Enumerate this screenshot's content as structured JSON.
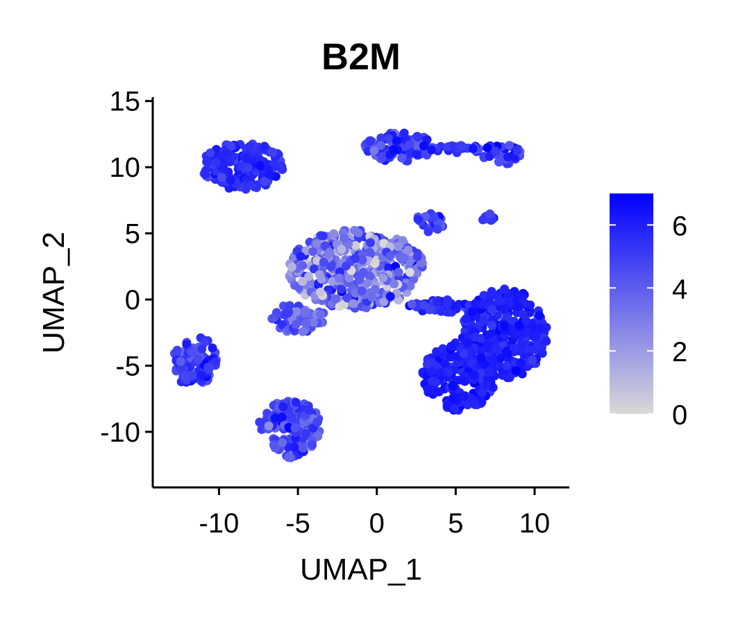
{
  "chart_data": {
    "type": "scatter",
    "title": "B2M",
    "xlabel": "UMAP_1",
    "ylabel": "UMAP_2",
    "xlim": [
      -14.2,
      12.2
    ],
    "ylim": [
      -14.2,
      15.3
    ],
    "xticks": [
      -10,
      -5,
      0,
      5,
      10
    ],
    "xtick_labels": [
      "-10",
      "-5",
      "0",
      "5",
      "10"
    ],
    "yticks": [
      -10,
      -5,
      0,
      5,
      10,
      15
    ],
    "ytick_labels": [
      "-10",
      "-5",
      "0",
      "5",
      "10",
      "15"
    ],
    "grid": false,
    "legend": "right",
    "colorbar": {
      "min": 0,
      "max": 7,
      "ticks": [
        0,
        2,
        4,
        6
      ],
      "tick_labels": [
        "0",
        "2",
        "4",
        "6"
      ],
      "low_color": "#d9d9d9",
      "high_color": "#0000ff"
    },
    "point_color_mid": "#7b5cf0",
    "clusters": [
      {
        "name": "top-left",
        "cx": -8.5,
        "cy": 10.1,
        "rx": 2.6,
        "ry": 1.8,
        "n": 170,
        "mean": 5.6,
        "sd": 0.5
      },
      {
        "name": "top-right-head",
        "cx": 1.4,
        "cy": 11.5,
        "rx": 2.2,
        "ry": 1.1,
        "n": 110,
        "mean": 5.2,
        "sd": 0.9
      },
      {
        "name": "top-right-bridge",
        "cx": 5.2,
        "cy": 11.4,
        "rx": 1.8,
        "ry": 0.3,
        "n": 28,
        "mean": 5.2,
        "sd": 0.6
      },
      {
        "name": "top-right-tail",
        "cx": 7.9,
        "cy": 11.0,
        "rx": 1.2,
        "ry": 0.8,
        "n": 40,
        "mean": 5.2,
        "sd": 0.9
      },
      {
        "name": "center",
        "cx": -1.3,
        "cy": 2.3,
        "rx": 4.3,
        "ry": 3.0,
        "n": 420,
        "mean": 3.1,
        "sd": 1.5
      },
      {
        "name": "center-arm",
        "cx": -5.0,
        "cy": -1.4,
        "rx": 1.8,
        "ry": 1.1,
        "n": 60,
        "mean": 4.2,
        "sd": 0.9
      },
      {
        "name": "center-tail",
        "cx": 4.0,
        "cy": -0.5,
        "rx": 2.1,
        "ry": 0.5,
        "n": 45,
        "mean": 5.6,
        "sd": 0.7
      },
      {
        "name": "small-top",
        "cx": 3.4,
        "cy": 6.0,
        "rx": 0.9,
        "ry": 0.9,
        "n": 32,
        "mean": 5.2,
        "sd": 0.7
      },
      {
        "name": "tiny-right",
        "cx": 7.0,
        "cy": 6.1,
        "rx": 0.5,
        "ry": 0.4,
        "n": 9,
        "mean": 5.4,
        "sd": 0.4
      },
      {
        "name": "right-large-a",
        "cx": 8.1,
        "cy": -2.6,
        "rx": 2.7,
        "ry": 3.4,
        "n": 300,
        "mean": 6.0,
        "sd": 0.4
      },
      {
        "name": "right-large-b",
        "cx": 5.2,
        "cy": -5.8,
        "rx": 2.3,
        "ry": 2.6,
        "n": 210,
        "mean": 6.0,
        "sd": 0.4
      },
      {
        "name": "left",
        "cx": -11.5,
        "cy": -4.7,
        "rx": 1.4,
        "ry": 2.0,
        "n": 95,
        "mean": 5.1,
        "sd": 0.7
      },
      {
        "name": "bottom-left",
        "cx": -5.5,
        "cy": -9.8,
        "rx": 2.0,
        "ry": 2.2,
        "n": 160,
        "mean": 4.6,
        "sd": 0.9
      }
    ]
  }
}
